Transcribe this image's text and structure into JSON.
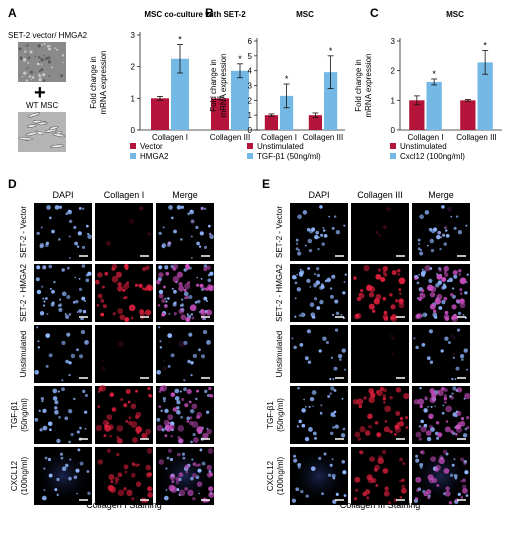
{
  "panel_labels": {
    "A": "A",
    "B": "B",
    "C": "C",
    "D": "D",
    "E": "E"
  },
  "panel_a": {
    "cell_label_top": "SET-2 vector/ HMGA2",
    "plus_symbol": "+",
    "cell_label_bottom": "WT MSC"
  },
  "colors": {
    "red": "#b5143a",
    "blue": "#74b8e6",
    "nuclei": "#8fb6ff",
    "stain": "#e0203e"
  },
  "micrographs": {
    "D": {
      "column_headers": [
        "DAPI",
        "Collagen I",
        "Merge"
      ],
      "row_labels": [
        "SET-2 - Vector",
        "SET-2 - HMGA2",
        "Unstimulated",
        "TGF-β1\n(50ng/ml)",
        "CXCL12\n(100ng/ml)"
      ],
      "footer": "Collagen I Staining"
    },
    "E": {
      "column_headers": [
        "DAPI",
        "Collagen III",
        "Merge"
      ],
      "row_labels": [
        "SET-2 - Vector",
        "SET-2 - HMGA2",
        "Unstimulated",
        "TGF-β1\n(50ng/ml)",
        "CXCL12\n(100ng/ml)"
      ],
      "footer": "Collagen III Staining"
    }
  },
  "chart_data": [
    {
      "type": "bar",
      "panel": "A",
      "title": "MSC co-culture with SET-2",
      "ylabel": "Fold change in mRNA expression",
      "ylim": [
        0,
        3
      ],
      "yticks": [
        0,
        1,
        2,
        3
      ],
      "categories": [
        "Collagen I",
        "Collagen III"
      ],
      "series": [
        {
          "name": "Vector",
          "color": "#b5143a",
          "values": [
            1.0,
            1.0
          ],
          "errors": [
            0.06,
            0.04
          ]
        },
        {
          "name": "HMGA2",
          "color": "#74b8e6",
          "values": [
            2.25,
            1.87
          ],
          "errors": [
            0.45,
            0.22
          ]
        }
      ],
      "significance": [
        "*",
        "*"
      ],
      "legend_position": "bottom"
    },
    {
      "type": "bar",
      "panel": "B",
      "title": "MSC",
      "ylabel": "Fold change in mRNA expression",
      "ylim": [
        0,
        6
      ],
      "yticks": [
        0,
        1,
        2,
        3,
        4,
        5,
        6
      ],
      "categories": [
        "Collagen I",
        "Collagen III"
      ],
      "series": [
        {
          "name": "Unstimulated",
          "color": "#b5143a",
          "values": [
            1.0,
            1.0
          ],
          "errors": [
            0.08,
            0.15
          ]
        },
        {
          "name": "TGF-β1 (50ng/ml)",
          "color": "#74b8e6",
          "values": [
            2.3,
            3.9
          ],
          "errors": [
            0.8,
            1.1
          ]
        }
      ],
      "significance": [
        "*",
        "*"
      ],
      "legend_position": "bottom"
    },
    {
      "type": "bar",
      "panel": "C",
      "title": "MSC",
      "ylabel": "Fold change in mRNA expression",
      "ylim": [
        0,
        3
      ],
      "yticks": [
        0,
        1,
        2,
        3
      ],
      "categories": [
        "Collagen I",
        "Collagen III"
      ],
      "series": [
        {
          "name": "Unstimulated",
          "color": "#b5143a",
          "values": [
            1.0,
            1.0
          ],
          "errors": [
            0.15,
            0.03
          ]
        },
        {
          "name": "Cxcl12 (100ng/ml)",
          "color": "#74b8e6",
          "values": [
            1.62,
            2.28
          ],
          "errors": [
            0.1,
            0.4
          ]
        }
      ],
      "significance": [
        "*",
        "*"
      ],
      "legend_position": "bottom"
    }
  ]
}
